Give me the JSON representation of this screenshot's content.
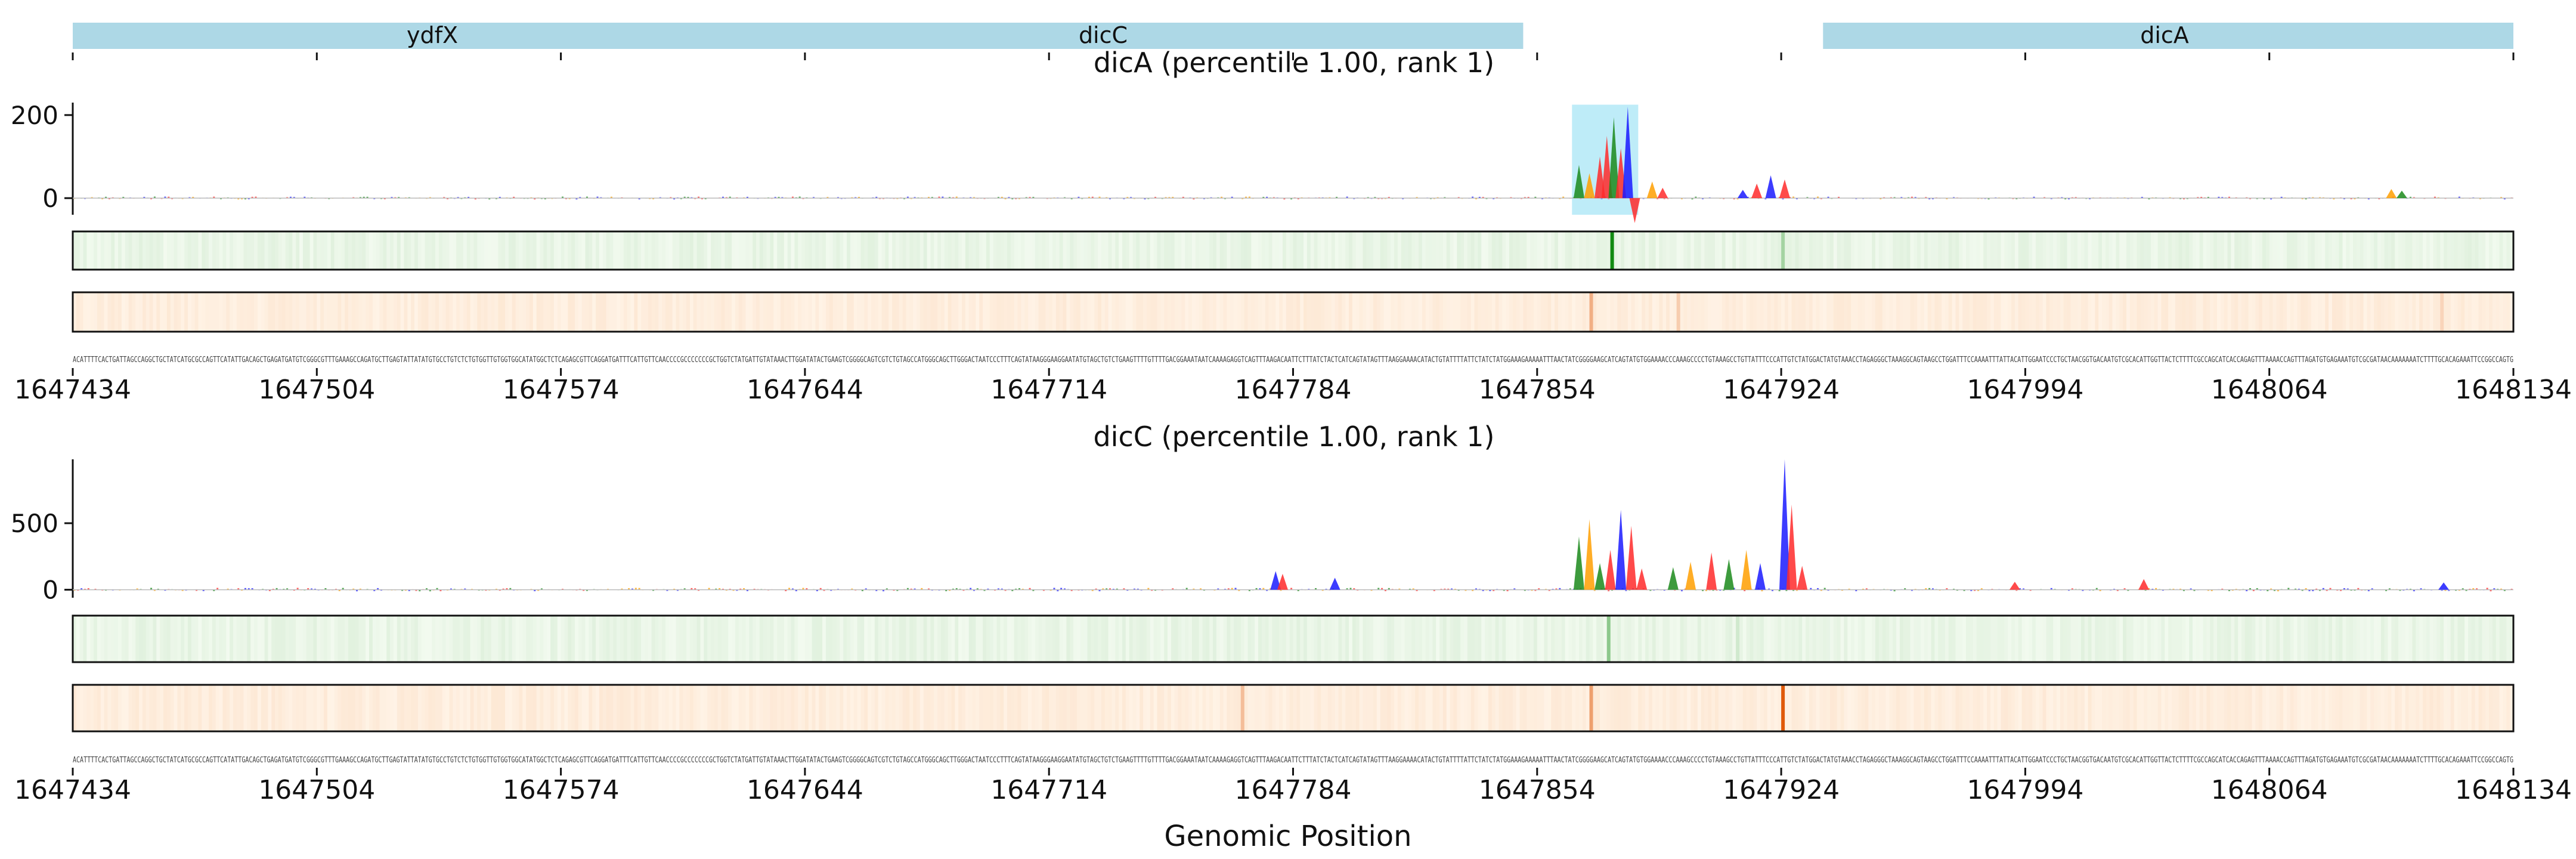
{
  "chart_data": {
    "type": "line",
    "xlabel": "Genomic Position",
    "xlim": [
      1647434,
      1648134
    ],
    "xticks": [
      1647434,
      1647504,
      1647574,
      1647644,
      1647714,
      1647784,
      1647854,
      1647924,
      1647994,
      1648064,
      1648134
    ],
    "gene_track": [
      {
        "name": "ydfX",
        "start": 1647434,
        "end": 1647850
      },
      {
        "name": "dicC",
        "start": 1647434,
        "end": 1647850
      },
      {
        "name": "dicA",
        "start": 1647936,
        "end": 1648134
      }
    ],
    "panels": [
      {
        "title": "dicA (percentile 1.00, rank 1)",
        "ylim": [
          -40,
          230
        ],
        "yticks": [
          0,
          200
        ],
        "highlight": [
          1647864,
          1647883
        ],
        "peaks": [
          {
            "x": 1647866,
            "y": 80,
            "color": "#1b8a1b"
          },
          {
            "x": 1647869,
            "y": 60,
            "color": "#ff9f00"
          },
          {
            "x": 1647872,
            "y": 100,
            "color": "#ff2a2a"
          },
          {
            "x": 1647874,
            "y": 150,
            "color": "#ff2a2a"
          },
          {
            "x": 1647876,
            "y": 195,
            "color": "#1b8a1b"
          },
          {
            "x": 1647878,
            "y": 120,
            "color": "#ff2a2a"
          },
          {
            "x": 1647880,
            "y": 220,
            "color": "#1a1aff"
          },
          {
            "x": 1647882,
            "y": -60,
            "color": "#ff2a2a"
          },
          {
            "x": 1647887,
            "y": 40,
            "color": "#ff9f00"
          },
          {
            "x": 1647890,
            "y": 25,
            "color": "#ff2a2a"
          },
          {
            "x": 1647913,
            "y": 20,
            "color": "#1a1aff"
          },
          {
            "x": 1647917,
            "y": 35,
            "color": "#ff2a2a"
          },
          {
            "x": 1647921,
            "y": 55,
            "color": "#1a1aff"
          },
          {
            "x": 1647925,
            "y": 45,
            "color": "#ff2a2a"
          },
          {
            "x": 1648099,
            "y": 22,
            "color": "#ff9f00"
          },
          {
            "x": 1648102,
            "y": 18,
            "color": "#1b8a1b"
          }
        ],
        "green_heat_peaks": [
          {
            "x": 1647875,
            "strength": 1.0
          },
          {
            "x": 1647924,
            "strength": 0.35
          }
        ],
        "orange_heat_peaks": [
          {
            "x": 1647869,
            "strength": 0.45
          },
          {
            "x": 1647894,
            "strength": 0.25
          },
          {
            "x": 1648113,
            "strength": 0.2
          }
        ]
      },
      {
        "title": "dicC (percentile 1.00, rank 1)",
        "ylim": [
          -60,
          980
        ],
        "yticks": [
          0,
          500
        ],
        "peaks": [
          {
            "x": 1647779,
            "y": 140,
            "color": "#1a1aff"
          },
          {
            "x": 1647781,
            "y": 120,
            "color": "#ff2a2a"
          },
          {
            "x": 1647796,
            "y": 90,
            "color": "#1a1aff"
          },
          {
            "x": 1647866,
            "y": 400,
            "color": "#1b8a1b"
          },
          {
            "x": 1647869,
            "y": 530,
            "color": "#ff9f00"
          },
          {
            "x": 1647872,
            "y": 200,
            "color": "#1b8a1b"
          },
          {
            "x": 1647875,
            "y": 300,
            "color": "#ff2a2a"
          },
          {
            "x": 1647878,
            "y": 600,
            "color": "#1a1aff"
          },
          {
            "x": 1647881,
            "y": 480,
            "color": "#ff2a2a"
          },
          {
            "x": 1647884,
            "y": 160,
            "color": "#ff2a2a"
          },
          {
            "x": 1647893,
            "y": 170,
            "color": "#1b8a1b"
          },
          {
            "x": 1647898,
            "y": 210,
            "color": "#ff9f00"
          },
          {
            "x": 1647904,
            "y": 280,
            "color": "#ff2a2a"
          },
          {
            "x": 1647909,
            "y": 230,
            "color": "#1b8a1b"
          },
          {
            "x": 1647914,
            "y": 300,
            "color": "#ff9f00"
          },
          {
            "x": 1647918,
            "y": 200,
            "color": "#1a1aff"
          },
          {
            "x": 1647925,
            "y": 980,
            "color": "#1a1aff"
          },
          {
            "x": 1647927,
            "y": 640,
            "color": "#ff2a2a"
          },
          {
            "x": 1647930,
            "y": 180,
            "color": "#ff2a2a"
          },
          {
            "x": 1647991,
            "y": 60,
            "color": "#ff2a2a"
          },
          {
            "x": 1648028,
            "y": 80,
            "color": "#ff2a2a"
          },
          {
            "x": 1648114,
            "y": 55,
            "color": "#1a1aff"
          }
        ],
        "green_heat_peaks": [
          {
            "x": 1647874,
            "strength": 0.45
          },
          {
            "x": 1647911,
            "strength": 0.15
          }
        ],
        "orange_heat_peaks": [
          {
            "x": 1647769,
            "strength": 0.35
          },
          {
            "x": 1647869,
            "strength": 0.55
          },
          {
            "x": 1647924,
            "strength": 1.0
          }
        ]
      }
    ],
    "sequence": "ACATTTTCACTGATTAGCCAGGCTGCTATCATGCGCCAGTTCATATTGACAGCTGAGATGATGTCGGGCGTTTGAAAGCCAGATGCTTGAGTATTATATGTGCCTGTCTCTGTGGTTGTGGTGGCATATGGCTCTCAGAGCGTTCAGGATGATTTCATTGTTCAACCCCGCCCCCCCGCTGGTCTATGATTGTATAAACTTGGATATACTGAAGTCGGGGCAGTCGTCTGTAGCCATGGGCAGCTTGGGACTAATCCCTTTCAGTATAAGGGAAGGAATATGTAGCTGTCTGAAGTTTTGTTTTGACGGAAATAATCAAAAGAGGTCAGTTTAAGACAATTCTTTATCTACTCATCAGTATAGTTTAAGGAAAACATACTGTATTTTATTCTATCTATGGAAAGAAAAATTTAACTATCGGGGAAGCATCAGTATGTGGAAAACCCAAAGCCCCTGTAAAGCCTGTTATTTCCCATTGTCTATGGACTATGTAAACCTAGAGGGCTAAAGGCAGTAAGCCTGGATTTCCAAAATTTATTACATTGGAATCCCTGCTAACGGTGACAATGTCGCACATTGGTTACTCTTTTCGCCAGCATCACCAGAGTTTAAAACCAGTTTAGATGTGAGAAATGTCGCGATAACAAAAAAATCTTTTGCACAGAAATTCCGGCCAGTG"
  }
}
